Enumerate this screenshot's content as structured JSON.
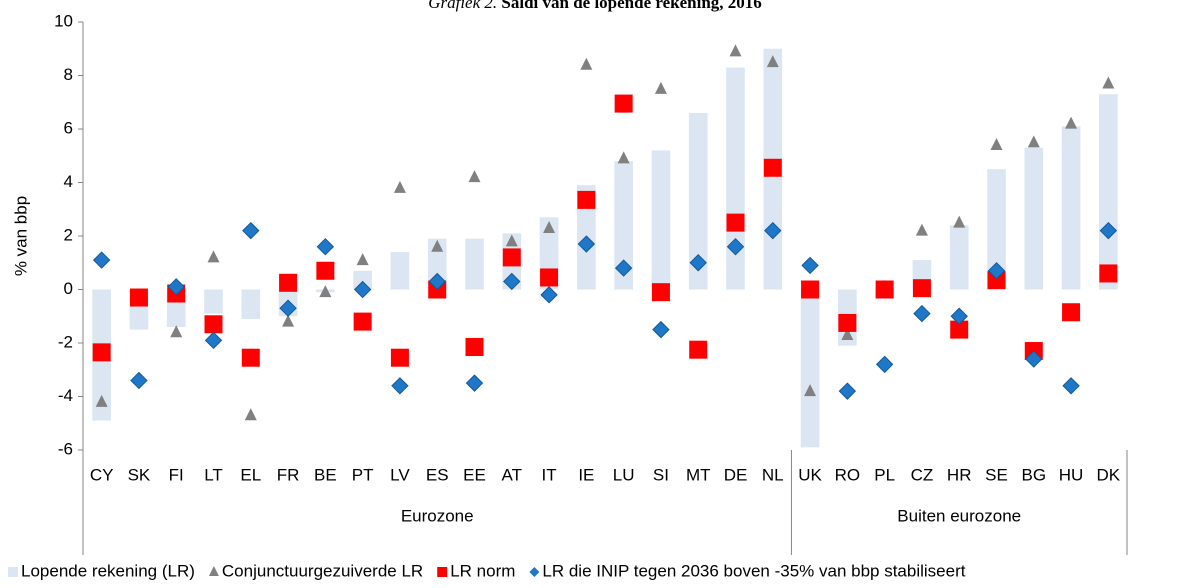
{
  "chart_data": {
    "type": "bar_markers",
    "title_prefix": "Grafiek 2.",
    "title": "Saldi van de lopende rekening, 2016",
    "ylabel": "% van bbp",
    "groups": [
      {
        "name": "Eurozone",
        "categories": [
          "CY",
          "SK",
          "FI",
          "LT",
          "EL",
          "FR",
          "BE",
          "PT",
          "LV",
          "ES",
          "EE",
          "AT",
          "IT",
          "IE",
          "LU",
          "SI",
          "MT",
          "DE",
          "NL"
        ]
      },
      {
        "name": "Buiten eurozone",
        "categories": [
          "UK",
          "RO",
          "PL",
          "CZ",
          "HR",
          "SE",
          "BG",
          "HU",
          "DK"
        ]
      }
    ],
    "ylim": [
      -6,
      10
    ],
    "yticks": [
      -6,
      -4,
      -2,
      0,
      2,
      4,
      6,
      8,
      10
    ],
    "grid": false,
    "legend": "bottom",
    "series": [
      {
        "name": "Lopende rekening (LR)",
        "mark": "bar",
        "color": "#dce6f2",
        "values": [
          -4.9,
          -1.5,
          -1.4,
          -0.9,
          -1.1,
          -1.0,
          -0.1,
          0.7,
          1.4,
          1.9,
          1.9,
          2.1,
          2.7,
          3.9,
          4.8,
          5.2,
          6.6,
          8.3,
          9.0,
          -5.9,
          -2.1,
          -0.3,
          1.1,
          2.4,
          4.5,
          5.3,
          6.1,
          7.3
        ]
      },
      {
        "name": "Conjunctuurgezuiverde LR",
        "mark": "triangle",
        "color": "#808080",
        "values": [
          -4.2,
          null,
          -1.6,
          1.2,
          -4.7,
          -1.2,
          -0.1,
          1.1,
          3.8,
          1.6,
          4.2,
          1.8,
          2.3,
          8.4,
          4.9,
          7.5,
          null,
          8.9,
          8.5,
          -3.8,
          -1.7,
          0.1,
          2.2,
          2.5,
          5.4,
          5.5,
          6.2,
          7.7
        ]
      },
      {
        "name": "LR norm",
        "mark": "square",
        "color": "#ff0000",
        "values": [
          -2.35,
          -0.3,
          -0.15,
          -1.3,
          -2.55,
          0.25,
          0.7,
          -1.2,
          -2.55,
          0.0,
          -2.15,
          1.2,
          0.45,
          3.35,
          6.95,
          -0.1,
          -2.25,
          2.5,
          4.55,
          0.0,
          -1.25,
          0.0,
          0.05,
          -1.5,
          0.35,
          -2.3,
          -0.85,
          0.6
        ]
      },
      {
        "name": "LR die INIP tegen 2036 boven -35% van bbp stabiliseert",
        "mark": "diamond",
        "color": "#1f77c9",
        "values": [
          1.1,
          -3.4,
          0.1,
          -1.9,
          2.2,
          -0.7,
          1.6,
          0.0,
          -3.6,
          0.3,
          -3.5,
          0.3,
          -0.2,
          1.7,
          0.8,
          -1.5,
          1.0,
          1.6,
          2.2,
          0.9,
          -3.8,
          -2.8,
          -0.9,
          -1.0,
          0.7,
          -2.6,
          -3.6,
          2.2
        ]
      }
    ]
  }
}
